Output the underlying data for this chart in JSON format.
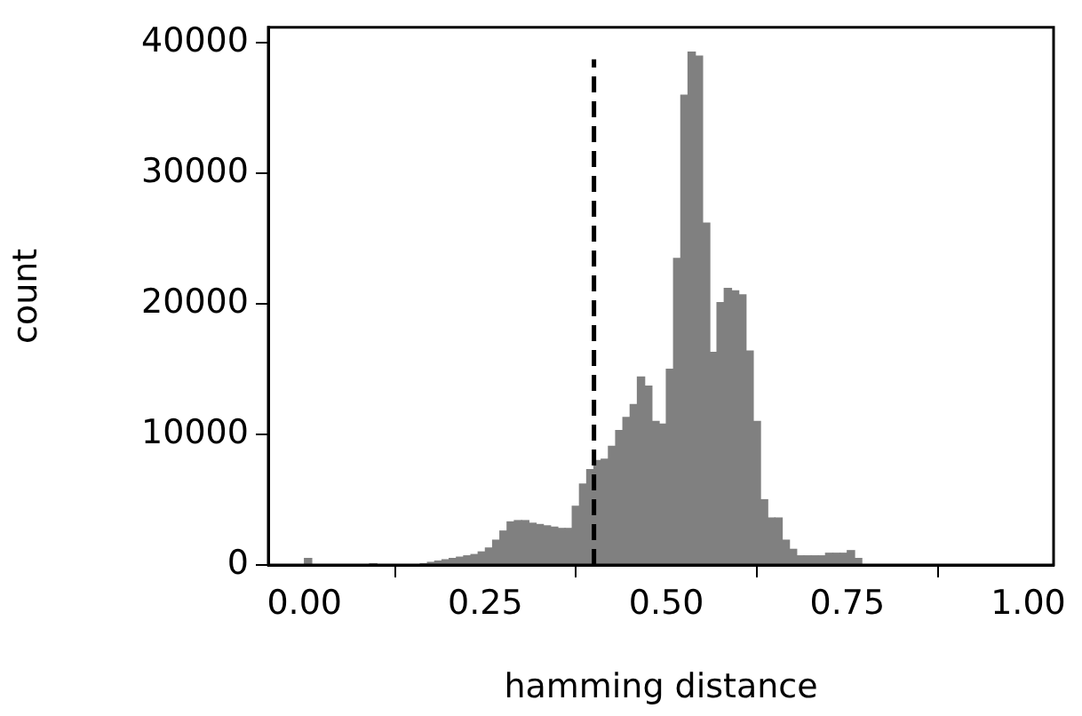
{
  "chart_data": {
    "type": "histogram",
    "xlabel": "hamming distance",
    "ylabel": "count",
    "color": "#808080",
    "bins": [
      0,
      0.01,
      0.02,
      0.03,
      0.04,
      0.05,
      0.06,
      0.07,
      0.08,
      0.09,
      0.1,
      0.11,
      0.12,
      0.13,
      0.14,
      0.15,
      0.16,
      0.17,
      0.18,
      0.19,
      0.2,
      0.21,
      0.22,
      0.23,
      0.24,
      0.25,
      0.26,
      0.27,
      0.28,
      0.29,
      0.3,
      0.31,
      0.32,
      0.33,
      0.34,
      0.35,
      0.36,
      0.37,
      0.38,
      0.39,
      0.4,
      0.41,
      0.42,
      0.43,
      0.44,
      0.45,
      0.46,
      0.47,
      0.48,
      0.49,
      0.5,
      0.51,
      0.52,
      0.53,
      0.54,
      0.55,
      0.56,
      0.57,
      0.58,
      0.59,
      0.6,
      0.61,
      0.62,
      0.63,
      0.64,
      0.65,
      0.66,
      0.67,
      0.68,
      0.69,
      0.7,
      0.71,
      0.72,
      0.73,
      0.74,
      0.75,
      0.76,
      0.77
    ],
    "values": [
      500,
      0,
      0,
      0,
      0,
      0,
      0,
      0,
      0,
      100,
      null,
      null,
      null,
      null,
      null,
      null,
      100,
      200,
      300,
      400,
      500,
      600,
      700,
      800,
      1000,
      1300,
      1900,
      2600,
      3300,
      3400,
      3400,
      3200,
      3100,
      3000,
      2900,
      2800,
      2800,
      4500,
      6200,
      7300,
      8000,
      8100,
      9100,
      10300,
      11300,
      12300,
      14400,
      13700,
      11000,
      10800,
      15000,
      23500,
      36000,
      39300,
      39000,
      26200,
      16300,
      20100,
      21200,
      21000,
      20700,
      16400,
      11000,
      5000,
      3600,
      3600,
      1900,
      1200,
      700,
      700,
      700,
      700,
      900,
      900,
      900,
      1100,
      500
    ],
    "xlim": [
      -0.05,
      1.035
    ],
    "xticks": [
      {
        "value": 0,
        "label": "0.00"
      },
      {
        "value": 0.25,
        "label": "0.25"
      },
      {
        "value": 0.5,
        "label": "0.50"
      },
      {
        "value": 0.75,
        "label": "0.75"
      },
      {
        "value": 1,
        "label": "1.00"
      }
    ],
    "ylim": [
      0,
      41200
    ],
    "yticks": [
      0,
      10000,
      20000,
      30000,
      40000
    ],
    "ref_lines": [
      {
        "axis": "x",
        "value": 0.4,
        "color": "#000000",
        "line_style": "dashed"
      }
    ],
    "grid": false,
    "legend": false
  }
}
